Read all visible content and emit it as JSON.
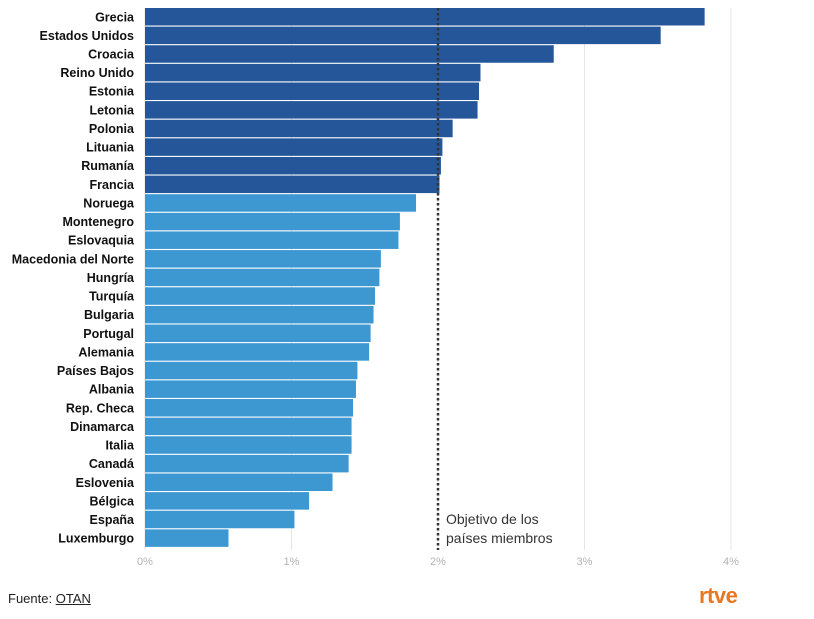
{
  "chart_data": {
    "type": "bar",
    "orientation": "horizontal",
    "categories": [
      "Grecia",
      "Estados Unidos",
      "Croacia",
      "Reino Unido",
      "Estonia",
      "Letonia",
      "Polonia",
      "Lituania",
      "Rumanía",
      "Francia",
      "Noruega",
      "Montenegro",
      "Eslovaquia",
      "Macedonia del Norte",
      "Hungría",
      "Turquía",
      "Bulgaria",
      "Portugal",
      "Alemania",
      "Países Bajos",
      "Albania",
      "Rep. Checa",
      "Dinamarca",
      "Italia",
      "Canadá",
      "Eslovenia",
      "Bélgica",
      "España",
      "Luxemburgo"
    ],
    "values": [
      3.82,
      3.52,
      2.79,
      2.29,
      2.28,
      2.27,
      2.1,
      2.03,
      2.02,
      2.01,
      1.85,
      1.74,
      1.73,
      1.61,
      1.6,
      1.57,
      1.56,
      1.54,
      1.53,
      1.45,
      1.44,
      1.42,
      1.41,
      1.41,
      1.39,
      1.28,
      1.12,
      1.02,
      0.57
    ],
    "colors": {
      "above_target": "#25569a",
      "below_target": "#3d97d1",
      "grid": "#e6e6e6",
      "reference_line": "#333333"
    },
    "xlim": [
      0,
      4
    ],
    "xticks": [
      0,
      1,
      2,
      3,
      4
    ],
    "xtick_labels": [
      "0%",
      "1%",
      "2%",
      "3%",
      "4%"
    ],
    "reference_line": {
      "x": 2,
      "style": "dotted",
      "label_lines": [
        "Objetivo de los",
        "países miembros"
      ]
    },
    "grid": true,
    "title": "",
    "xlabel": "",
    "ylabel": ""
  },
  "footer": {
    "source_prefix": "Fuente: ",
    "source_link": "OTAN"
  },
  "logo": {
    "text": "rtve"
  }
}
